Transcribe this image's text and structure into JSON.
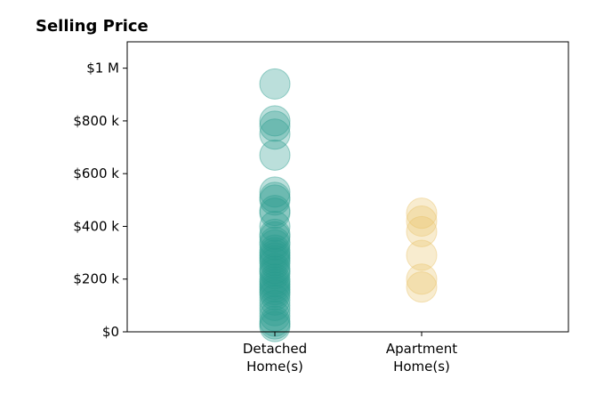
{
  "chart_data": {
    "type": "scatter",
    "title": "Selling Price",
    "xlabel": "",
    "ylabel": "",
    "categories": [
      "Detached\nHome(s)",
      "Apartment\nHome(s)"
    ],
    "ylim": [
      0,
      1100000
    ],
    "yticks": [
      0,
      200000,
      400000,
      600000,
      800000,
      1000000
    ],
    "ytick_labels": [
      "$0",
      "$200 k",
      "$400 k",
      "$600 k",
      "$800 k",
      "$1 M"
    ],
    "grid": false,
    "series": [
      {
        "category_index": 0,
        "color": "#2a9d8f",
        "values": [
          940000,
          800000,
          780000,
          750000,
          670000,
          530000,
          510000,
          500000,
          460000,
          450000,
          400000,
          370000,
          360000,
          340000,
          330000,
          310000,
          300000,
          290000,
          280000,
          270000,
          260000,
          240000,
          230000,
          220000,
          200000,
          190000,
          180000,
          170000,
          160000,
          150000,
          140000,
          120000,
          100000,
          80000,
          60000,
          40000,
          30000,
          20000
        ]
      },
      {
        "category_index": 1,
        "color": "#e9c46a",
        "values": [
          450000,
          420000,
          380000,
          290000,
          200000,
          170000
        ]
      }
    ]
  }
}
